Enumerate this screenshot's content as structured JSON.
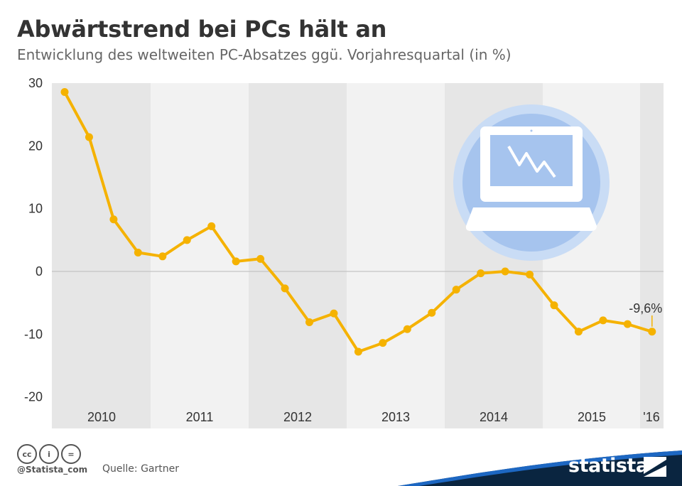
{
  "header": {
    "title": "Abwärtstrend bei PCs hält an",
    "subtitle": "Entwicklung des weltweiten PC-Absatzes ggü. Vorjahresquartal (in %)"
  },
  "chart_data": {
    "type": "line",
    "title": "Abwärtstrend bei PCs hält an",
    "subtitle": "Entwicklung des weltweiten PC-Absatzes ggü. Vorjahresquartal (in %)",
    "xlabel": "",
    "ylabel": "",
    "ylim": [
      -20,
      30
    ],
    "yticks": [
      30,
      20,
      10,
      0,
      -10,
      -20
    ],
    "year_labels": [
      "2010",
      "2011",
      "2012",
      "2013",
      "2014",
      "2015",
      "'16"
    ],
    "values": [
      28.6,
      21.4,
      8.3,
      3.0,
      2.4,
      5.0,
      7.2,
      1.6,
      2.0,
      -2.7,
      -8.1,
      -6.7,
      -12.8,
      -11.4,
      -9.2,
      -6.6,
      -2.9,
      -0.3,
      0.0,
      -0.5,
      -5.4,
      -9.6,
      -7.8,
      -8.4,
      -9.6
    ],
    "last_value_label": "-9,6%",
    "grid": "horizontal zero line",
    "line_color": "#f5b200",
    "band_color": "#e6e6e6",
    "background": "#f2f2f2"
  },
  "footer": {
    "cc_icons": [
      "cc",
      "by",
      "nd"
    ],
    "cc_labels": [
      "cc",
      "i",
      "="
    ],
    "handle": "@Statista_com",
    "source": "Quelle: Gartner",
    "brand": "statista",
    "brand_color": "#0a2540"
  }
}
